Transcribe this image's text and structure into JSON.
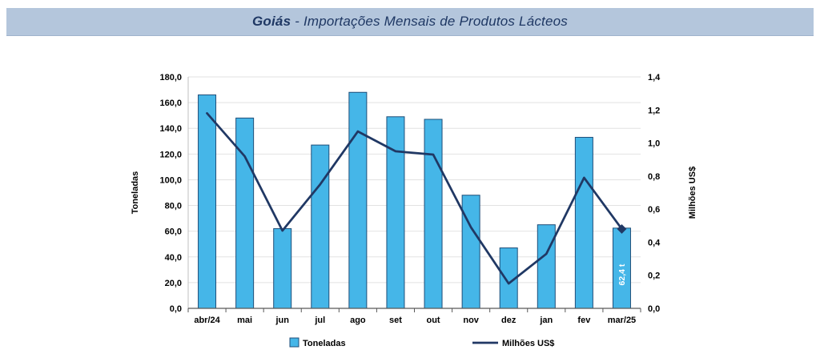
{
  "header": {
    "title_bold": "Goiás",
    "title_rest": " - Importações Mensais de Produtos Lácteos"
  },
  "colors": {
    "banner_bg": "#b4c6dc",
    "title_text": "#1f3864",
    "bar_fill": "#45b6e8",
    "bar_border": "#1f4e79",
    "line_color": "#203864",
    "gridline": "#e2e2e2",
    "axis_line": "#595959"
  },
  "chart_data": {
    "type": "bar",
    "combo": true,
    "title": "Goiás - Importações Mensais de Produtos Lácteos",
    "categories": [
      "abr/24",
      "mai",
      "jun",
      "jul",
      "ago",
      "set",
      "out",
      "nov",
      "dez",
      "jan",
      "fev",
      "mar/25"
    ],
    "series": [
      {
        "name": "Toneladas",
        "type": "bar",
        "axis": "left",
        "color": "#45b6e8",
        "border_color": "#1f4e79",
        "values": [
          166,
          148,
          62,
          127,
          168,
          149,
          147,
          88,
          47,
          65,
          133,
          62.4
        ]
      },
      {
        "name": "Milhões US$",
        "type": "line",
        "axis": "right",
        "color": "#203864",
        "end_marker": "diamond",
        "values": [
          1.18,
          0.92,
          0.47,
          0.75,
          1.07,
          0.95,
          0.93,
          0.49,
          0.15,
          0.33,
          0.79,
          0.48
        ]
      }
    ],
    "left_axis": {
      "label": "Toneladas",
      "min": 0,
      "max": 180,
      "step": 20,
      "tick_labels": [
        "0,0",
        "20,0",
        "40,0",
        "60,0",
        "80,0",
        "100,0",
        "120,0",
        "140,0",
        "160,0",
        "180,0"
      ]
    },
    "right_axis": {
      "label": "Milhões US$",
      "min": 0,
      "max": 1.4,
      "step": 0.2,
      "tick_labels": [
        "0,0",
        "0,2",
        "0,4",
        "0,6",
        "0,8",
        "1,0",
        "1,2",
        "1,4"
      ]
    },
    "annotation": {
      "text": "62,4 t",
      "series": "Toneladas",
      "category": "mar/25"
    },
    "legend": {
      "position": "bottom",
      "entries": [
        "Toneladas",
        "Milhões US$"
      ]
    },
    "grid": true
  }
}
